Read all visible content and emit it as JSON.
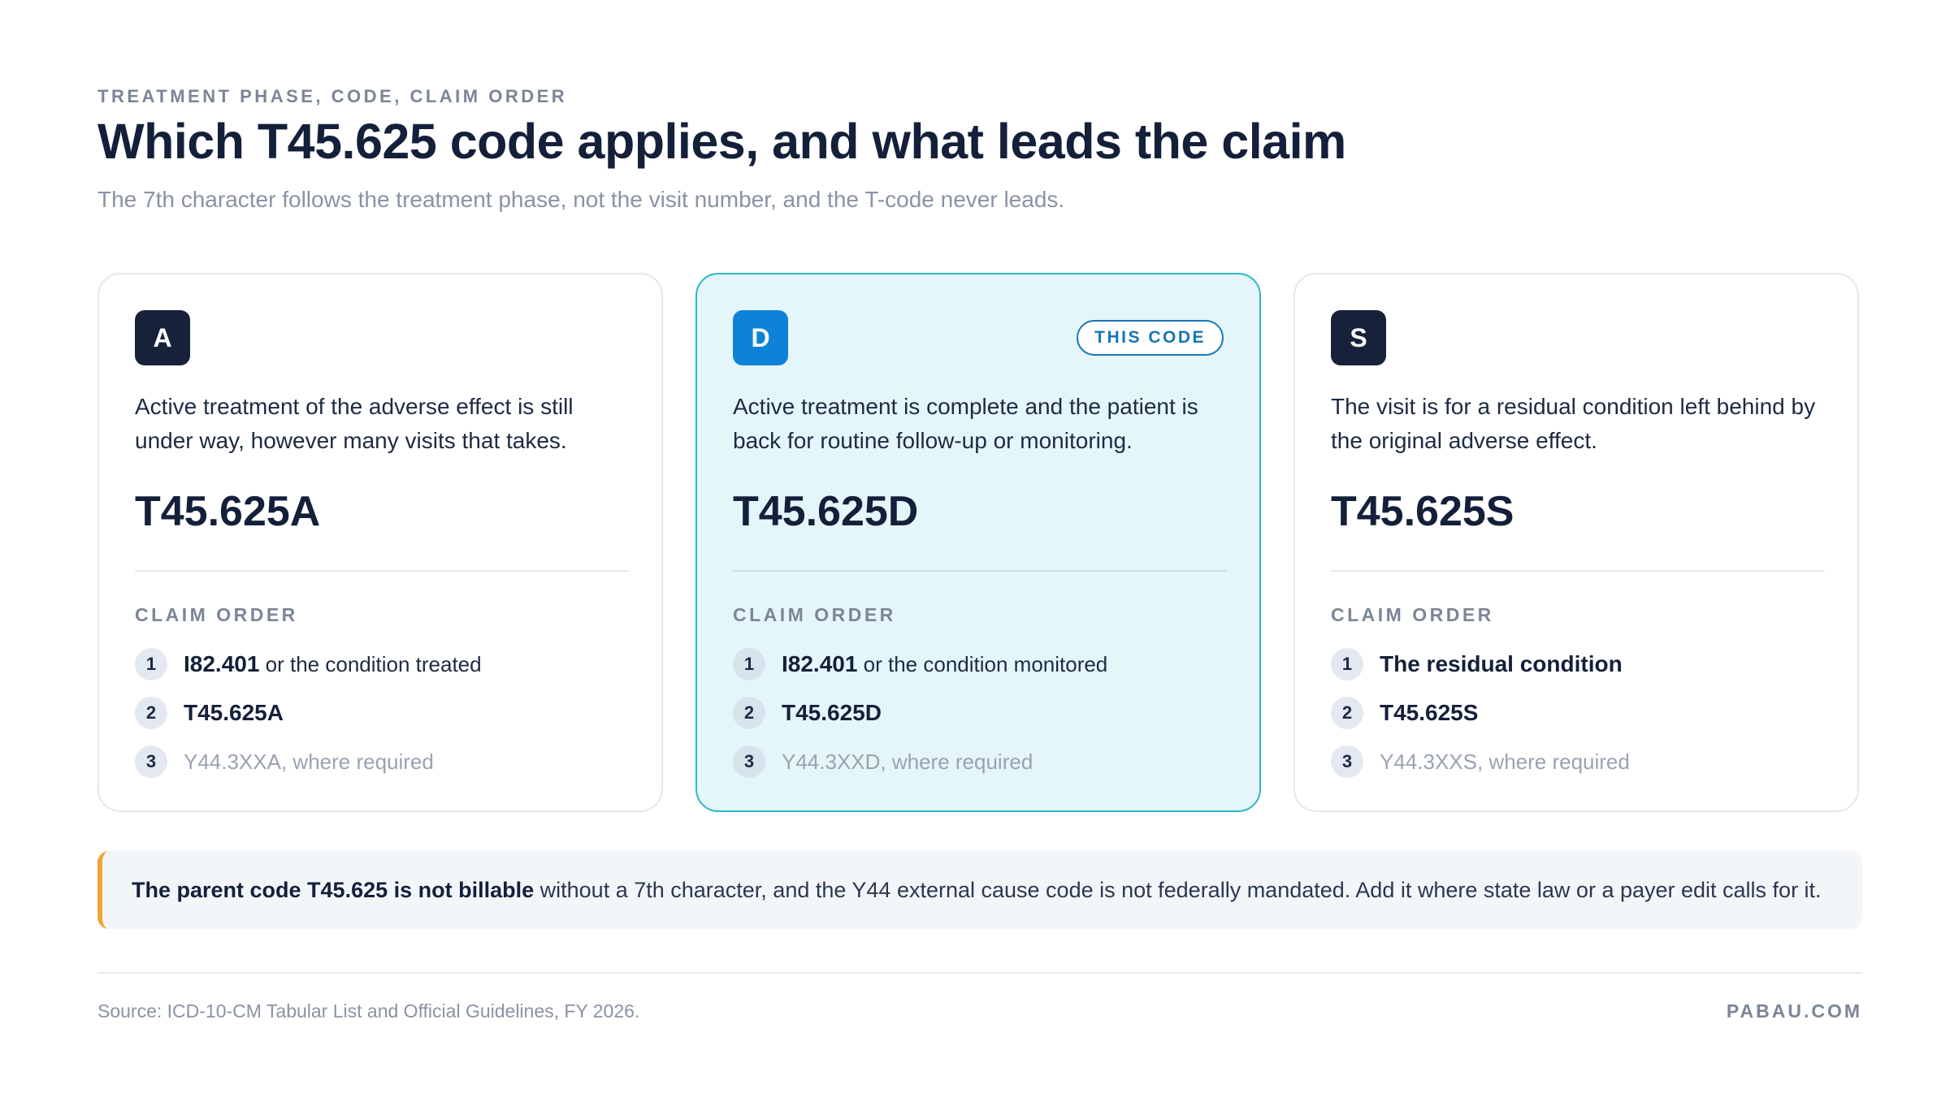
{
  "header": {
    "eyebrow": "TREATMENT PHASE, CODE, CLAIM ORDER",
    "title": "Which T45.625 code applies, and what leads the claim",
    "subtitle": "The 7th character follows the treatment phase, not the visit number, and the T-code never leads."
  },
  "cards": [
    {
      "letter": "A",
      "description": "Active treatment of the adverse effect is still under way, however many visits that takes.",
      "code": "T45.625A",
      "claim_order_label": "CLAIM ORDER",
      "steps": [
        {
          "num": "1",
          "bold": "I82.401",
          "text": " or the condition treated"
        },
        {
          "num": "2",
          "bold": "T45.625A",
          "text": ""
        },
        {
          "num": "3",
          "bold": "",
          "text": "Y44.3XXA, where required"
        }
      ]
    },
    {
      "letter": "D",
      "badge": "THIS CODE",
      "description": "Active treatment is complete and the patient is back for routine follow-up or monitoring.",
      "code": "T45.625D",
      "claim_order_label": "CLAIM ORDER",
      "steps": [
        {
          "num": "1",
          "bold": "I82.401",
          "text": " or the condition monitored"
        },
        {
          "num": "2",
          "bold": "T45.625D",
          "text": ""
        },
        {
          "num": "3",
          "bold": "",
          "text": "Y44.3XXD, where required"
        }
      ]
    },
    {
      "letter": "S",
      "description": "The visit is for a residual condition left behind by the original adverse effect.",
      "code": "T45.625S",
      "claim_order_label": "CLAIM ORDER",
      "steps": [
        {
          "num": "1",
          "bold": "The residual condition",
          "text": ""
        },
        {
          "num": "2",
          "bold": "T45.625S",
          "text": ""
        },
        {
          "num": "3",
          "bold": "",
          "text": "Y44.3XXS, where required"
        }
      ]
    }
  ],
  "note": {
    "bold": "The parent code T45.625 is not billable",
    "text": " without a 7th character, and the Y44 external cause code is not federally mandated. Add it where state law or a payer edit calls for it."
  },
  "footer": {
    "source": "Source: ICD-10-CM Tabular List and Official Guidelines, FY 2026.",
    "brand": "PABAU.COM"
  },
  "colors": {
    "accent_card_bg": "#e4f6fa",
    "accent_card_border": "#2bb7c8",
    "accent_letter": "#0e82d6",
    "note_bar": "#f0a73a"
  }
}
